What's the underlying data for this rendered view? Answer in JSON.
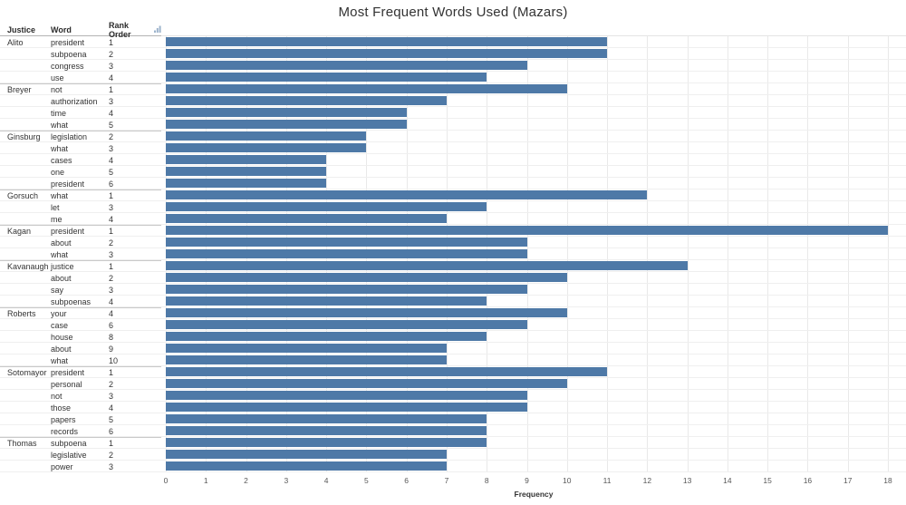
{
  "title": "Most Frequent Words Used (Mazars)",
  "table": {
    "columns": [
      {
        "key": "justice",
        "label": "Justice"
      },
      {
        "key": "word",
        "label": "Word"
      },
      {
        "key": "rank",
        "label": "Rank Order",
        "sorted_ascending": true
      }
    ]
  },
  "axis": {
    "label": "Frequency",
    "min": 0,
    "max": 18,
    "tick_step": 1
  },
  "colors": {
    "bar": "#4e79a7",
    "gridline": "#e9e9e9",
    "row_line": "#efefef",
    "group_line": "#c9c9c9",
    "header_line": "#b3b3b3",
    "text": "#333333",
    "tick_text": "#575757",
    "sort_icon": "#9db4cc"
  },
  "chart_data": {
    "type": "bar",
    "orientation": "horizontal",
    "title": "Most Frequent Words Used (Mazars)",
    "xlabel": "Frequency",
    "xlim": [
      0,
      18
    ],
    "grid": true,
    "legend": false,
    "rows": [
      {
        "justice": "Alito",
        "word": "president",
        "rank": 1,
        "frequency": 11
      },
      {
        "justice": "Alito",
        "word": "subpoena",
        "rank": 2,
        "frequency": 11
      },
      {
        "justice": "Alito",
        "word": "congress",
        "rank": 3,
        "frequency": 9
      },
      {
        "justice": "Alito",
        "word": "use",
        "rank": 4,
        "frequency": 8
      },
      {
        "justice": "Breyer",
        "word": "not",
        "rank": 1,
        "frequency": 10
      },
      {
        "justice": "Breyer",
        "word": "authorization",
        "rank": 3,
        "frequency": 7
      },
      {
        "justice": "Breyer",
        "word": "time",
        "rank": 4,
        "frequency": 6
      },
      {
        "justice": "Breyer",
        "word": "what",
        "rank": 5,
        "frequency": 6
      },
      {
        "justice": "Ginsburg",
        "word": "legislation",
        "rank": 2,
        "frequency": 5
      },
      {
        "justice": "Ginsburg",
        "word": "what",
        "rank": 3,
        "frequency": 5
      },
      {
        "justice": "Ginsburg",
        "word": "cases",
        "rank": 4,
        "frequency": 4
      },
      {
        "justice": "Ginsburg",
        "word": "one",
        "rank": 5,
        "frequency": 4
      },
      {
        "justice": "Ginsburg",
        "word": "president",
        "rank": 6,
        "frequency": 4
      },
      {
        "justice": "Gorsuch",
        "word": "what",
        "rank": 1,
        "frequency": 12
      },
      {
        "justice": "Gorsuch",
        "word": "let",
        "rank": 3,
        "frequency": 8
      },
      {
        "justice": "Gorsuch",
        "word": "me",
        "rank": 4,
        "frequency": 7
      },
      {
        "justice": "Kagan",
        "word": "president",
        "rank": 1,
        "frequency": 18
      },
      {
        "justice": "Kagan",
        "word": "about",
        "rank": 2,
        "frequency": 9
      },
      {
        "justice": "Kagan",
        "word": "what",
        "rank": 3,
        "frequency": 9
      },
      {
        "justice": "Kavanaugh",
        "word": "justice",
        "rank": 1,
        "frequency": 13
      },
      {
        "justice": "Kavanaugh",
        "word": "about",
        "rank": 2,
        "frequency": 10
      },
      {
        "justice": "Kavanaugh",
        "word": "say",
        "rank": 3,
        "frequency": 9
      },
      {
        "justice": "Kavanaugh",
        "word": "subpoenas",
        "rank": 4,
        "frequency": 8
      },
      {
        "justice": "Roberts",
        "word": "your",
        "rank": 4,
        "frequency": 10
      },
      {
        "justice": "Roberts",
        "word": "case",
        "rank": 6,
        "frequency": 9
      },
      {
        "justice": "Roberts",
        "word": "house",
        "rank": 8,
        "frequency": 8
      },
      {
        "justice": "Roberts",
        "word": "about",
        "rank": 9,
        "frequency": 7
      },
      {
        "justice": "Roberts",
        "word": "what",
        "rank": 10,
        "frequency": 7
      },
      {
        "justice": "Sotomayor",
        "word": "president",
        "rank": 1,
        "frequency": 11
      },
      {
        "justice": "Sotomayor",
        "word": "personal",
        "rank": 2,
        "frequency": 10
      },
      {
        "justice": "Sotomayor",
        "word": "not",
        "rank": 3,
        "frequency": 9
      },
      {
        "justice": "Sotomayor",
        "word": "those",
        "rank": 4,
        "frequency": 9
      },
      {
        "justice": "Sotomayor",
        "word": "papers",
        "rank": 5,
        "frequency": 8
      },
      {
        "justice": "Sotomayor",
        "word": "records",
        "rank": 6,
        "frequency": 8
      },
      {
        "justice": "Thomas",
        "word": "subpoena",
        "rank": 1,
        "frequency": 8
      },
      {
        "justice": "Thomas",
        "word": "legislative",
        "rank": 2,
        "frequency": 7
      },
      {
        "justice": "Thomas",
        "word": "power",
        "rank": 3,
        "frequency": 7
      }
    ]
  }
}
